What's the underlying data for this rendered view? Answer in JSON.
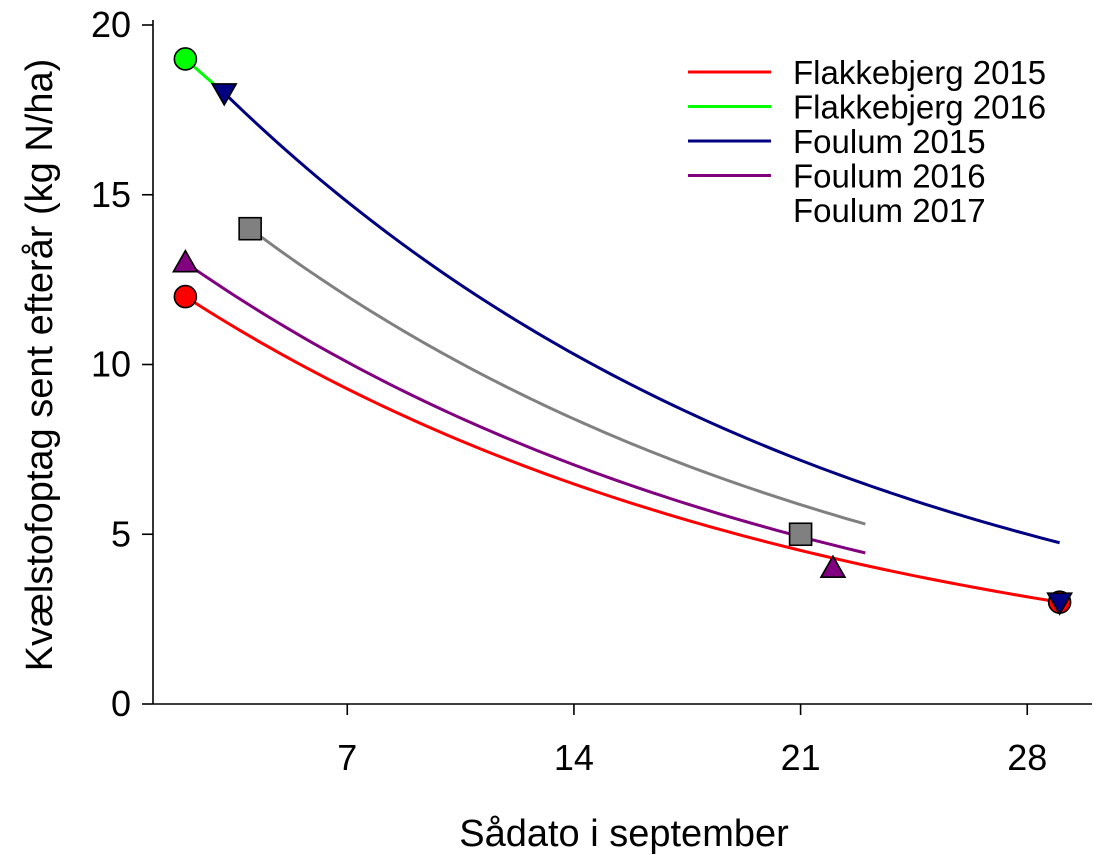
{
  "chart_data": {
    "type": "scatter",
    "title": "",
    "xlabel": "Sådato i september",
    "ylabel": "Kvælstofoptag sent efterår (kg N/ha)",
    "xlim": [
      1,
      30
    ],
    "ylim": [
      0,
      20
    ],
    "xticks": [
      7,
      14,
      21,
      28
    ],
    "yticks": [
      0,
      5,
      10,
      15,
      20
    ],
    "grid": false,
    "legend_position": "top-right",
    "series": [
      {
        "name": "Flakkebjerg 2015",
        "color": "#ff0000",
        "marker": "circle",
        "points": [
          {
            "x": 2,
            "y": 12
          },
          {
            "x": 29,
            "y": 3
          }
        ],
        "curve": {
          "x_start": 2,
          "x_end": 29,
          "y_start": 12,
          "y_end": 3
        }
      },
      {
        "name": "Flakkebjerg 2016",
        "color": "#00ff00",
        "marker": "circle",
        "points": [
          {
            "x": 2,
            "y": 19
          }
        ],
        "curve": {
          "x_start": 2,
          "x_end": 3.2,
          "y_start": 19,
          "y_end": 18
        }
      },
      {
        "name": "Foulum 2015",
        "color": "#000080",
        "marker": "triangle-down",
        "points": [
          {
            "x": 3.2,
            "y": 18
          },
          {
            "x": 29,
            "y": 3
          }
        ],
        "curve": {
          "x_start": 3.2,
          "x_end": 29,
          "y_start": 18,
          "y_end": 4.75
        }
      },
      {
        "name": "Foulum 2016",
        "color": "#800080",
        "marker": "triangle-up",
        "points": [
          {
            "x": 2,
            "y": 13
          },
          {
            "x": 22,
            "y": 4
          }
        ],
        "curve": {
          "x_start": 2,
          "x_end": 23,
          "y_start": 13,
          "y_end": 4.45
        }
      },
      {
        "name": "Foulum 2017",
        "color": "#808080",
        "marker": "square",
        "points": [
          {
            "x": 4,
            "y": 14
          },
          {
            "x": 21,
            "y": 5
          }
        ],
        "curve": {
          "x_start": 4,
          "x_end": 23,
          "y_start": 14,
          "y_end": 5.3
        }
      }
    ]
  }
}
